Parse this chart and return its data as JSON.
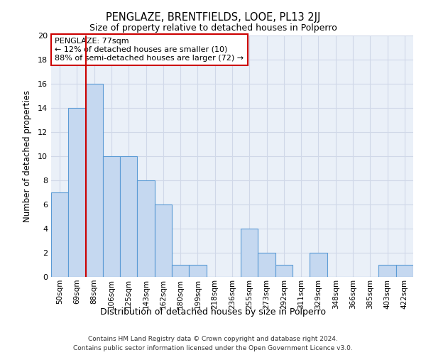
{
  "title": "PENGLAZE, BRENTFIELDS, LOOE, PL13 2JJ",
  "subtitle": "Size of property relative to detached houses in Polperro",
  "xlabel": "Distribution of detached houses by size in Polperro",
  "ylabel": "Number of detached properties",
  "categories": [
    "50sqm",
    "69sqm",
    "88sqm",
    "106sqm",
    "125sqm",
    "143sqm",
    "162sqm",
    "180sqm",
    "199sqm",
    "218sqm",
    "236sqm",
    "255sqm",
    "273sqm",
    "292sqm",
    "311sqm",
    "329sqm",
    "348sqm",
    "366sqm",
    "385sqm",
    "403sqm",
    "422sqm"
  ],
  "values": [
    7,
    14,
    16,
    10,
    10,
    8,
    6,
    1,
    1,
    0,
    0,
    4,
    2,
    1,
    0,
    2,
    0,
    0,
    0,
    1,
    1
  ],
  "bar_color": "#c5d8f0",
  "bar_edge_color": "#5b9bd5",
  "grid_color": "#d0d8e8",
  "background_color": "#eaf0f8",
  "vline_color": "#cc0000",
  "vline_x_index": 1,
  "annotation_text": "PENGLAZE: 77sqm\n← 12% of detached houses are smaller (10)\n88% of semi-detached houses are larger (72) →",
  "annotation_box_color": "#ffffff",
  "annotation_box_edge": "#cc0000",
  "ylim": [
    0,
    20
  ],
  "yticks": [
    0,
    2,
    4,
    6,
    8,
    10,
    12,
    14,
    16,
    18,
    20
  ],
  "footer1": "Contains HM Land Registry data © Crown copyright and database right 2024.",
  "footer2": "Contains public sector information licensed under the Open Government Licence v3.0."
}
